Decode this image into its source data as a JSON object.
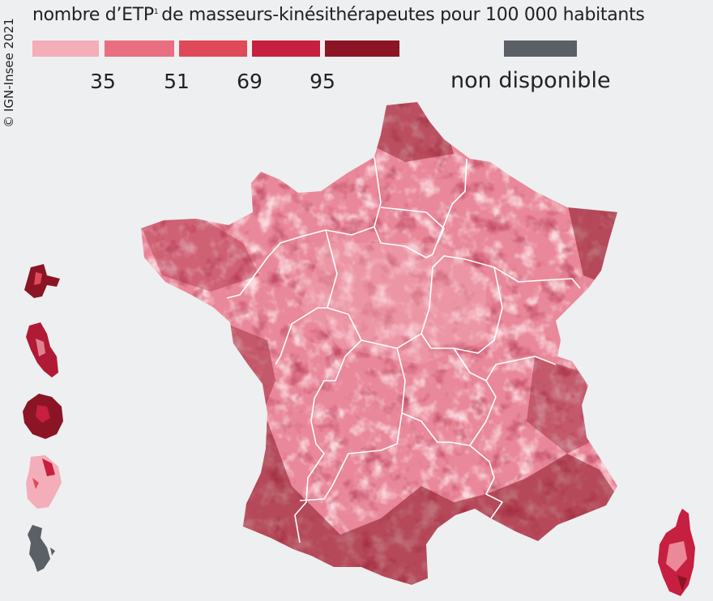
{
  "copyright": "© IGN-Insee 2021",
  "legend": {
    "title": "nombre d’ETP",
    "footnote_mark": "1",
    "title_rest": "de masseurs-kinésithérapeutes pour 100 000 habitants",
    "classes": [
      {
        "color": "#f4aeb9"
      },
      {
        "color": "#ea6e82"
      },
      {
        "color": "#e04a58"
      },
      {
        "color": "#c71f3f"
      },
      {
        "color": "#8b1525"
      }
    ],
    "thresholds": [
      "35",
      "51",
      "69",
      "95"
    ],
    "not_available": {
      "label": "non disponible",
      "color": "#5b5f66"
    }
  },
  "map": {
    "territories": [
      {
        "name": "France métropolitaine",
        "dominant_class": "mixed"
      },
      {
        "name": "Corse",
        "dominant_class": 4
      },
      {
        "name": "Guadeloupe",
        "dominant_class": 4
      },
      {
        "name": "Martinique",
        "dominant_class": 4
      },
      {
        "name": "La Réunion",
        "dominant_class": 5
      },
      {
        "name": "Guyane",
        "dominant_class": 1
      },
      {
        "name": "Mayotte",
        "dominant_class": "not_available"
      }
    ]
  }
}
